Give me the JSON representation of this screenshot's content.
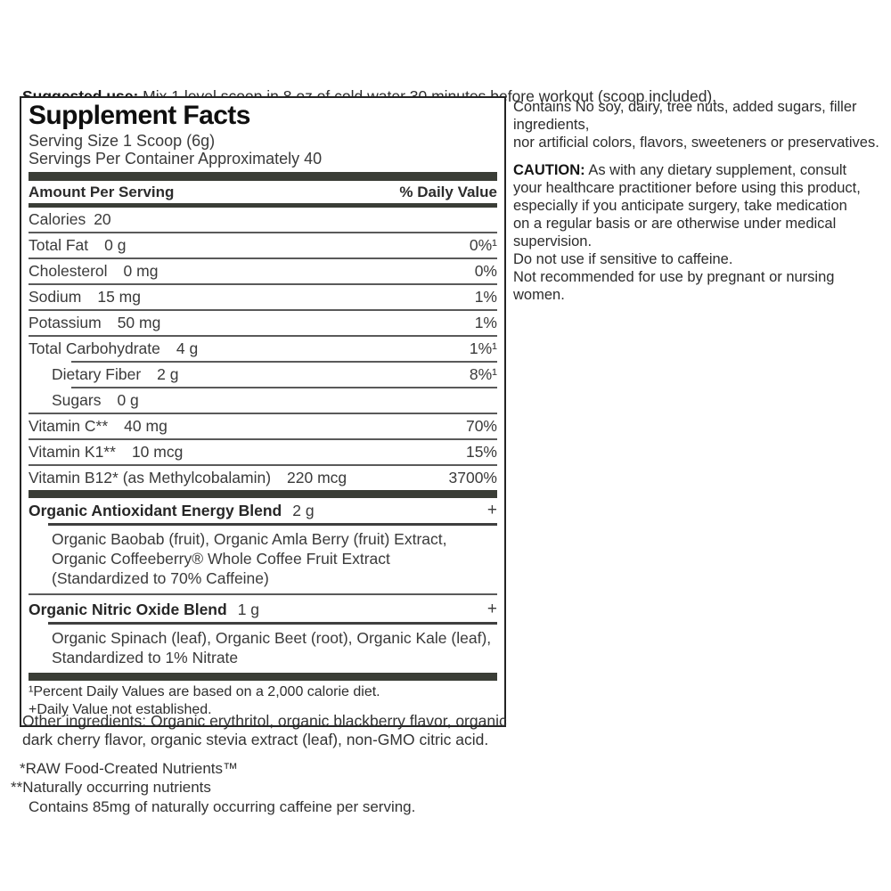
{
  "suggested_use": {
    "label": "Suggested use:",
    "text": " Mix 1 level scoop in 8 oz of cold water 30 minutes before workout (scoop included)."
  },
  "panel": {
    "title": "Supplement Facts",
    "serving_size": "Serving Size 1 Scoop (6g)",
    "servings_per_container": "Servings Per Container Approximately 40",
    "columns": {
      "amount_header": "Amount Per Serving",
      "dv_header": "% Daily Value"
    },
    "rows": [
      {
        "label": "Calories",
        "amount": "20",
        "dv": ""
      },
      {
        "label": "Total Fat",
        "amount": "0 g",
        "dv": "0%¹"
      },
      {
        "label": "Cholesterol",
        "amount": "0 mg",
        "dv": "0%"
      },
      {
        "label": "Sodium",
        "amount": "15 mg",
        "dv": "1%"
      },
      {
        "label": "Potassium",
        "amount": "50 mg",
        "dv": "1%"
      },
      {
        "label": "Total Carbohydrate",
        "amount": "4 g",
        "dv": "1%¹"
      },
      {
        "label": "Dietary Fiber",
        "amount": "2 g",
        "dv": "8%¹"
      },
      {
        "label": "Sugars",
        "amount": "0 g",
        "dv": ""
      },
      {
        "label": "Vitamin C**",
        "amount": "40 mg",
        "dv": "70%"
      },
      {
        "label": "Vitamin K1**",
        "amount": "10 mcg",
        "dv": "15%"
      },
      {
        "label": "Vitamin B12* (as Methylcobalamin)",
        "amount": "220 mcg",
        "dv": "3700%"
      }
    ],
    "blends": [
      {
        "name": "Organic Antioxidant Energy Blend",
        "amount": "2 g",
        "dv": "+",
        "ingredients": "Organic Baobab (fruit), Organic Amla Berry (fruit) Extract,\nOrganic Coffeeberry® Whole Coffee Fruit Extract\n(Standardized to 70% Caffeine)"
      },
      {
        "name": "Organic Nitric Oxide Blend",
        "amount": "1 g",
        "dv": "+",
        "ingredients": "Organic Spinach (leaf), Organic Beet (root), Organic Kale (leaf),\nStandardized to 1% Nitrate"
      }
    ],
    "footnotes": {
      "line1": "¹Percent Daily Values are based on a 2,000 calorie diet.",
      "line2": "+Daily Value not established."
    }
  },
  "other_ingredients": "Other ingredients: Organic erythritol, organic blackberry flavor, organic\ndark cherry flavor, organic stevia extract (leaf), non-GMO citric acid.",
  "asterisk_notes": {
    "raw": "*RAW Food-Created Nutrients™",
    "naturally": "**Naturally occurring nutrients",
    "caffeine": "Contains 85mg of naturally occurring caffeine per serving."
  },
  "right_column": {
    "contains": "Contains No soy, dairy, tree nuts, added sugars, filler ingredients,\nnor artificial colors, flavors, sweeteners or preservatives.",
    "caution_label": "CAUTION:",
    "caution_text": " As with any dietary supplement, consult\nyour healthcare practitioner before using this product,\nespecially if you anticipate surgery, take medication\non a regular basis or are otherwise under medical supervision.\nDo not use if sensitive to caffeine.\nNot recommended for use by pregnant or nursing women."
  },
  "colors": {
    "bar": "#3a3d36",
    "rule": "#5a5a5a",
    "text": "#3c3c3c",
    "title": "#0f0f0f"
  }
}
